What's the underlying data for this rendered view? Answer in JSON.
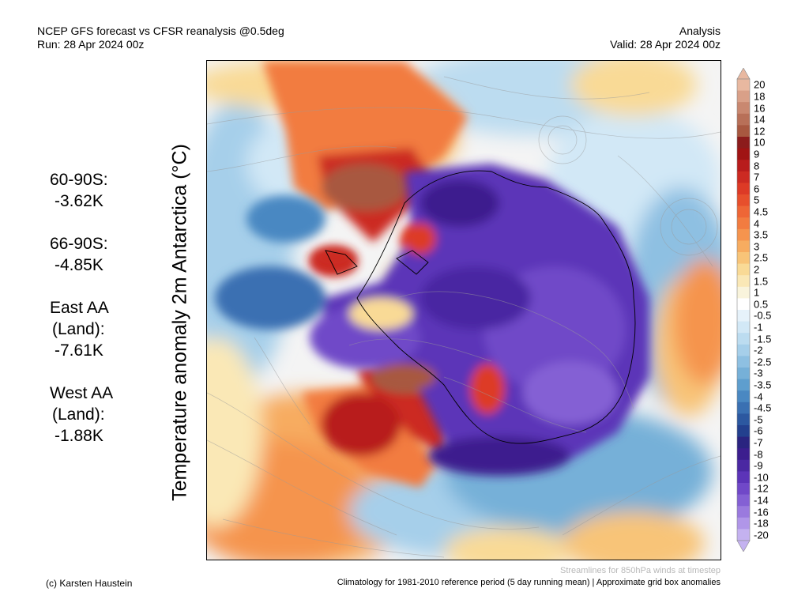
{
  "header": {
    "title": "NCEP GFS forecast vs CFSR reanalysis @0.5deg",
    "run": "Run: 28 Apr 2024 00z",
    "mode": "Analysis",
    "valid": "Valid: 28 Apr 2024 00z"
  },
  "ylabel": "Temperature anomaly 2m Antarctica (°C)",
  "stats": [
    {
      "lines": [
        "60-90S:"
      ],
      "value": "-3.62K"
    },
    {
      "lines": [
        "66-90S:"
      ],
      "value": "-4.85K"
    },
    {
      "lines": [
        "East AA",
        "(Land):"
      ],
      "value": "-7.61K"
    },
    {
      "lines": [
        "West AA",
        "(Land):"
      ],
      "value": "-1.88K"
    }
  ],
  "colorbar": {
    "labels": [
      "20",
      "18",
      "16",
      "14",
      "12",
      "10",
      "9",
      "8",
      "7",
      "6",
      "5",
      "4.5",
      "4",
      "3.5",
      "3",
      "2.5",
      "2",
      "1.5",
      "1",
      "0.5",
      "-0.5",
      "-1",
      "-1.5",
      "-2",
      "-2.5",
      "-3",
      "-3.5",
      "-4",
      "-4.5",
      "-5",
      "-6",
      "-7",
      "-8",
      "-9",
      "-10",
      "-12",
      "-14",
      "-16",
      "-18",
      "-20"
    ],
    "colors": [
      "#e8b8a0",
      "#d9a088",
      "#c98870",
      "#b87058",
      "#a85840",
      "#8c1c1c",
      "#a01414",
      "#b81c1c",
      "#cc2a22",
      "#dd3a26",
      "#e74f2c",
      "#ee6636",
      "#f27c40",
      "#f5944e",
      "#f7ac60",
      "#f8c478",
      "#f9da96",
      "#fae8b6",
      "#f9f4dc",
      "#ffffff",
      "#e6f2fa",
      "#d2e8f6",
      "#bcdcf0",
      "#a6cfea",
      "#8ec0e2",
      "#76b0d8",
      "#5e9ece",
      "#4a88c2",
      "#3a70b2",
      "#2c58a0",
      "#23408e",
      "#2a2480",
      "#3c1e8e",
      "#4a28a2",
      "#5c34b8",
      "#7048c8",
      "#8460d4",
      "#9a7ade",
      "#b096e8",
      "#c4b2f0"
    ]
  },
  "footer": {
    "author": "(c) Karsten Haustein",
    "streamlines": "Streamlines for 850hPa winds at timestep",
    "climatology": "Climatology for 1981-2010 reference period (5 day running mean) | Approximate grid box anomalies"
  }
}
